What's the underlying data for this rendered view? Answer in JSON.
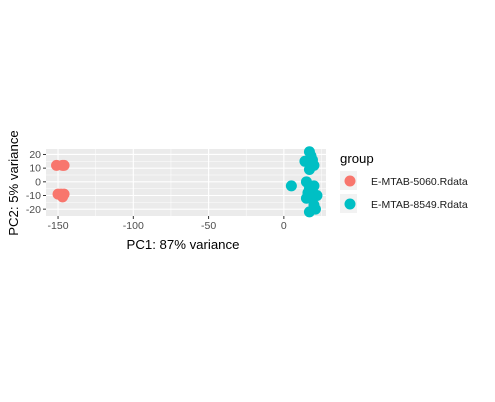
{
  "chart_data": {
    "type": "scatter",
    "title": "",
    "xlabel": "PC1: 87% variance",
    "ylabel": "PC2: 5% variance",
    "xlim": [
      -158,
      28
    ],
    "ylim": [
      -25,
      24
    ],
    "x_ticks": [
      -150,
      -100,
      -50,
      0
    ],
    "y_ticks": [
      -20,
      -10,
      0,
      10,
      20
    ],
    "grid": true,
    "legend_title": "group",
    "legend_position": "right",
    "series": [
      {
        "name": "E-MTAB-5060.Rdata",
        "color": "#F8766D",
        "points": [
          {
            "x": -151,
            "y": 12
          },
          {
            "x": -146,
            "y": 12
          },
          {
            "x": -147,
            "y": 12
          },
          {
            "x": -150,
            "y": -9
          },
          {
            "x": -148,
            "y": -9
          },
          {
            "x": -146,
            "y": -9
          },
          {
            "x": -147,
            "y": -11
          }
        ]
      },
      {
        "name": "E-MTAB-8549.Rdata",
        "color": "#00BFC4",
        "points": [
          {
            "x": 17,
            "y": 22
          },
          {
            "x": 18,
            "y": 19
          },
          {
            "x": 14,
            "y": 15
          },
          {
            "x": 19,
            "y": 16
          },
          {
            "x": 20,
            "y": 12
          },
          {
            "x": 17,
            "y": 9
          },
          {
            "x": 15,
            "y": 0
          },
          {
            "x": 5,
            "y": -3
          },
          {
            "x": 17,
            "y": -5
          },
          {
            "x": 19,
            "y": -7
          },
          {
            "x": 22,
            "y": -10
          },
          {
            "x": 18,
            "y": -12
          },
          {
            "x": 15,
            "y": -12
          },
          {
            "x": 20,
            "y": -17
          },
          {
            "x": 17,
            "y": -22
          },
          {
            "x": 21,
            "y": -20
          },
          {
            "x": 16,
            "y": -8
          },
          {
            "x": 20,
            "y": -3
          }
        ]
      }
    ]
  }
}
